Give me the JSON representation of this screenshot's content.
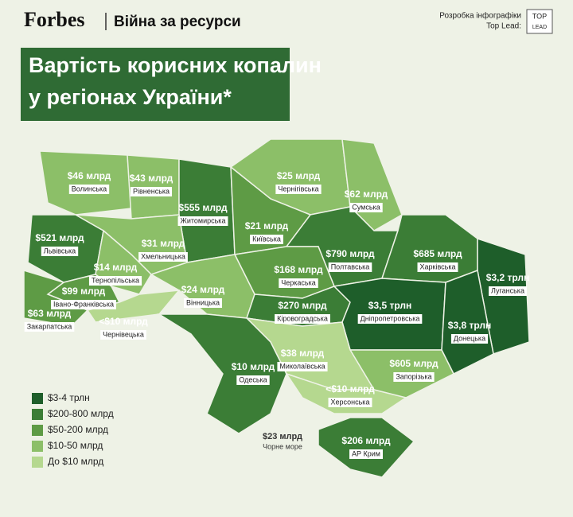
{
  "header": {
    "brand": "Forbes",
    "section": "Війна за ресурси",
    "credit_line1": "Розробка інфографіки",
    "credit_line2": "Top Lead:",
    "logo_top": "TOP",
    "logo_bottom": "LEAD"
  },
  "title": {
    "line1": "Вартість корисних копалин",
    "line2": "у регіонах України*"
  },
  "regions": [
    {
      "name": "Волинська",
      "value": "$46 млрд",
      "color": "#8cbf68"
    },
    {
      "name": "Рівненська",
      "value": "$43 млрд",
      "color": "#8cbf68"
    },
    {
      "name": "Житомирська",
      "value": "$555 млрд",
      "color": "#3b7d36"
    },
    {
      "name": "Чернігівська",
      "value": "$25 млрд",
      "color": "#8cbf68"
    },
    {
      "name": "Сумська",
      "value": "$62 млрд",
      "color": "#5e9b45"
    },
    {
      "name": "Київська",
      "value": "$21 млрд",
      "color": "#8cbf68"
    },
    {
      "name": "Львівська",
      "value": "$521 млрд",
      "color": "#3b7d36"
    },
    {
      "name": "Хмельницька",
      "value": "$31 млрд",
      "color": "#8cbf68"
    },
    {
      "name": "Тернопільська",
      "value": "$14 млрд",
      "color": "#8cbf68"
    },
    {
      "name": "Полтавська",
      "value": "$790 млрд",
      "color": "#3b7d36"
    },
    {
      "name": "Харківська",
      "value": "$685 млрд",
      "color": "#3b7d36"
    },
    {
      "name": "Луганська",
      "value": "$3,2 трлн",
      "color": "#1e5e2a"
    },
    {
      "name": "Черкаська",
      "value": "$168 млрд",
      "color": "#5e9b45"
    },
    {
      "name": "Вінницька",
      "value": "$24 млрд",
      "color": "#8cbf68"
    },
    {
      "name": "Івано-Франківська",
      "value": "$99 млрд",
      "color": "#5e9b45"
    },
    {
      "name": "Закарпатська",
      "value": "$63 млрд",
      "color": "#5e9b45"
    },
    {
      "name": "Чернівецька",
      "value": "<$10 млрд",
      "color": "#b5d88f"
    },
    {
      "name": "Кіровоградська",
      "value": "$270 млрд",
      "color": "#3b7d36"
    },
    {
      "name": "Дніпропетровська",
      "value": "$3,5 трлн",
      "color": "#1e5e2a"
    },
    {
      "name": "Донецька",
      "value": "$3,8 трлн",
      "color": "#1e5e2a"
    },
    {
      "name": "Миколаївська",
      "value": "$38 млрд",
      "color": "#8cbf68"
    },
    {
      "name": "Одеська",
      "value": "$10 млрд",
      "color": "#b5d88f"
    },
    {
      "name": "Запорізька",
      "value": "$605 млрд",
      "color": "#3b7d36"
    },
    {
      "name": "Херсонська",
      "value": "<$10 млрд",
      "color": "#b5d88f"
    },
    {
      "name": "АР Крим",
      "value": "$206 млрд",
      "color": "#3b7d36"
    }
  ],
  "sea": {
    "value": "$23 млрд",
    "name": "Чорне море"
  },
  "legend": [
    {
      "label": "$3-4 трлн",
      "color": "#1e5e2a"
    },
    {
      "label": "$200-800 млрд",
      "color": "#3b7d36"
    },
    {
      "label": "$50-200 млрд",
      "color": "#5e9b45"
    },
    {
      "label": "$10-50 млрд",
      "color": "#8cbf68"
    },
    {
      "label": "До $10 млрд",
      "color": "#b5d88f"
    }
  ]
}
